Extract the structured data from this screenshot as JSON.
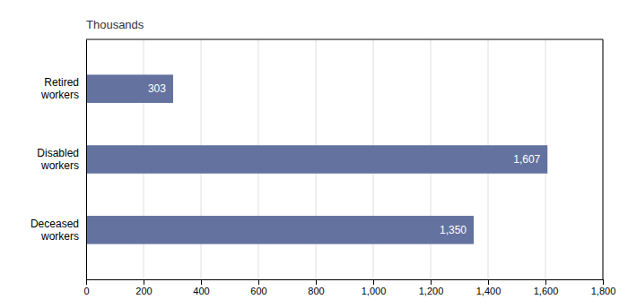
{
  "chart_data": {
    "type": "bar",
    "orientation": "horizontal",
    "xlabel": "Thousands",
    "categories": [
      "Retired\nworkers",
      "Disabled\nworkers",
      "Deceased\nworkers"
    ],
    "values": [
      303,
      1607,
      1350
    ],
    "value_labels": [
      "303",
      "1,607",
      "1,350"
    ],
    "data_labels": true,
    "color": "#6472a0",
    "xlim": [
      0,
      1800
    ],
    "xticks": [
      0,
      200,
      400,
      600,
      800,
      {
        "value": 1000,
        "label": "1,000"
      },
      {
        "value": 1200,
        "label": "1,200"
      },
      {
        "value": 1400,
        "label": "1,400"
      },
      {
        "value": 1600,
        "label": "1,600"
      },
      {
        "value": 1800,
        "label": "1,800"
      }
    ],
    "grid": true
  }
}
